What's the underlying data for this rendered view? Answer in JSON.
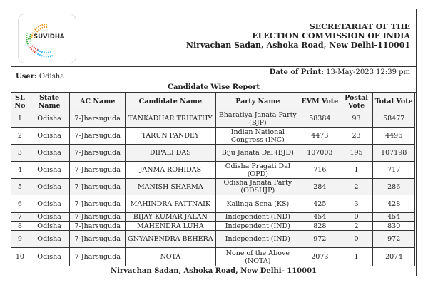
{
  "logo": {
    "text": "SUVIDHA"
  },
  "header": {
    "line1": "SECRETARIAT OF THE",
    "line2": "ELECTION COMMISSION OF INDIA",
    "line3": "Nirvachan Sadan, Ashoka Road, New Delhi-110001"
  },
  "user": {
    "label": "User:",
    "value": "Odisha"
  },
  "print": {
    "label": "Date of Print:",
    "value": "13-May-2023 12:39 pm"
  },
  "report_title": "Candidate Wise Report",
  "columns": [
    "SL No",
    "State Name",
    "AC Name",
    "Candidate Name",
    "Party Name",
    "EVM Vote",
    "Postal Vote",
    "Total Vote"
  ],
  "rows": [
    [
      "1",
      "Odisha",
      "7-Jharsuguda",
      "TANKADHAR TRIPATHY",
      "Bharatiya Janata Party (BJP)",
      "58384",
      "93",
      "58477"
    ],
    [
      "2",
      "Odisha",
      "7-Jharsuguda",
      "TARUN PANDEY",
      "Indian National Congress (INC)",
      "4473",
      "23",
      "4496"
    ],
    [
      "3",
      "Odisha",
      "7-Jharsuguda",
      "DIPALI DAS",
      "Biju Janata Dal (BJD)",
      "107003",
      "195",
      "107198"
    ],
    [
      "4",
      "Odisha",
      "7-Jharsuguda",
      "JANMA ROHIDAS",
      "Odisha Pragati Dal (OPD)",
      "716",
      "1",
      "717"
    ],
    [
      "5",
      "Odisha",
      "7-Jharsuguda",
      "MANISH SHARMA",
      "Odisha Janata Party (ODSHJP)",
      "284",
      "2",
      "286"
    ],
    [
      "6",
      "Odisha",
      "7-Jharsuguda",
      "MAHINDRA PATTNAIK",
      "Kalinga Sena (KS)",
      "425",
      "3",
      "428"
    ],
    [
      "7",
      "Odisha",
      "7-Jharsuguda",
      "BIJAY KUMAR JALAN",
      "Independent (IND)",
      "454",
      "0",
      "454"
    ],
    [
      "8",
      "Odisha",
      "7-Jharsuguda",
      "MAHENDRA LUHA",
      "Independent (IND)",
      "828",
      "2",
      "830"
    ],
    [
      "9",
      "Odisha",
      "7-Jharsuguda",
      "GNYANENDRA BEHERA",
      "Independent (IND)",
      "972",
      "0",
      "972"
    ],
    [
      "10",
      "Odisha",
      "7-Jharsuguda",
      "NOTA",
      "None of the Above (NOTA)",
      "2073",
      "1",
      "2074"
    ]
  ],
  "footer": "Nirvachan Sadan, Ashoka Road, New Delhi- 110001"
}
